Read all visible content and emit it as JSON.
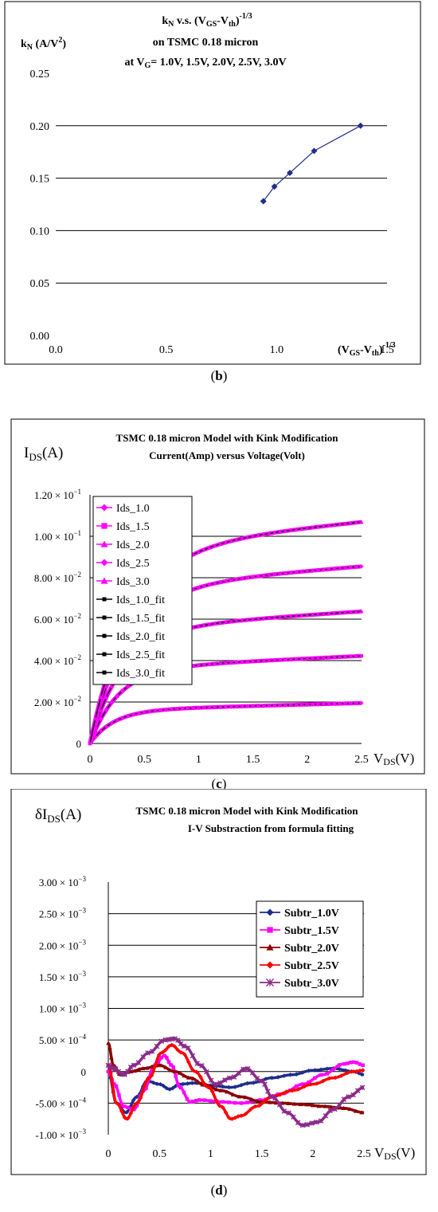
{
  "chart_data": [
    {
      "id": "b",
      "type": "line",
      "title_lines": [
        "k_N v.s. (V_GS-V_th)^-1/3",
        "on TSMC 0.18 micron",
        "at V_G= 1.0V, 1.5V, 2.0V, 2.5V, 3.0V"
      ],
      "title": {
        "l1_k": "k",
        "l1_k_sub": "N",
        "l1_mid": " v.s. (V",
        "l1_gs_sub": "GS",
        "l1_dash": "-V",
        "l1_th_sub": "th",
        "l1_close": ")",
        "l1_sup": "-1/3",
        "l2": "on TSMC 0.18 micron",
        "l3_a": "at V",
        "l3_sub": "G",
        "l3_b": "= 1.0V, 1.5V, 2.0V, 2.5V, 3.0V"
      },
      "ylabel": {
        "k": "k",
        "sub": "N",
        "rest": " (A/V",
        "sup": "2",
        "close": ")"
      },
      "xlabel": {
        "open": "(V",
        "gs_sub": "GS",
        "dash": "-V",
        "th_sub": "th",
        "close": ")",
        "sup": "-1/3"
      },
      "xlim": [
        0,
        1.5
      ],
      "ylim": [
        0,
        0.25
      ],
      "x_ticks": [
        "0.0",
        "0.5",
        "1.0",
        "1.5"
      ],
      "y_ticks": [
        "0.00",
        "0.05",
        "0.10",
        "0.15",
        "0.20",
        "0.25"
      ],
      "grid": true,
      "series": [
        {
          "color": "#1f2d8a",
          "marker": "diamond",
          "x": [
            0.94,
            0.99,
            1.06,
            1.17,
            1.38
          ],
          "y": [
            0.128,
            0.142,
            0.155,
            0.176,
            0.2
          ]
        }
      ]
    },
    {
      "id": "c",
      "type": "line",
      "title_lines": [
        "TSMC 0.18 micron Model with Kink Modification",
        "Current(Amp) versus Voltage(Volt)"
      ],
      "ylabel": {
        "base": "I",
        "sub": "DS",
        "rest": "(A)"
      },
      "xlabel": {
        "base": "V",
        "sub": "DS",
        "rest": "(V)"
      },
      "xlim": [
        0,
        2.5
      ],
      "ylim": [
        0,
        0.12
      ],
      "x_ticks": [
        "0",
        "0.5",
        "1",
        "1.5",
        "2",
        "2.5"
      ],
      "y_ticks": [
        {
          "m": "0",
          "e": ""
        },
        {
          "m": "2.00 × 10",
          "e": "−2"
        },
        {
          "m": "4.00 × 10",
          "e": "−2"
        },
        {
          "m": "6.00 × 10",
          "e": "−2"
        },
        {
          "m": "8.00 × 10",
          "e": "−2"
        },
        {
          "m": "1.00 × 10",
          "e": "−1"
        },
        {
          "m": "1.20 × 10",
          "e": "−1"
        }
      ],
      "grid": true,
      "legend_position": "top-left",
      "series": [
        {
          "name": "Ids_1.0",
          "color": "#ff00ff",
          "marker": "diamond",
          "vsat": 0.016,
          "slope": 0.0014,
          "tau": 0.22
        },
        {
          "name": "Ids_1.5",
          "color": "#ff00ff",
          "marker": "square",
          "vsat": 0.036,
          "slope": 0.0025,
          "tau": 0.26
        },
        {
          "name": "Ids_2.0",
          "color": "#ff00ff",
          "marker": "triangle",
          "vsat": 0.055,
          "slope": 0.0035,
          "tau": 0.3
        },
        {
          "name": "Ids_2.5",
          "color": "#ff00ff",
          "marker": "diamond",
          "vsat": 0.075,
          "slope": 0.0042,
          "tau": 0.34
        },
        {
          "name": "Ids_3.0",
          "color": "#ff00ff",
          "marker": "triangle",
          "vsat": 0.094,
          "slope": 0.0052,
          "tau": 0.38
        },
        {
          "name": "Ids_1.0_fit",
          "color": "#000000",
          "marker": "dash"
        },
        {
          "name": "Ids_1.5_fit",
          "color": "#000000",
          "marker": "dash"
        },
        {
          "name": "Ids_2.0_fit",
          "color": "#000000",
          "marker": "dash"
        },
        {
          "name": "Ids_2.5_fit",
          "color": "#000000",
          "marker": "dash"
        },
        {
          "name": "Ids_3.0_fit",
          "color": "#000000",
          "marker": "dash"
        }
      ]
    },
    {
      "id": "d",
      "type": "line",
      "title_lines": [
        "TSMC 0.18 micron Model with Kink Modification",
        "I-V Substraction from formula fitting"
      ],
      "ylabel": {
        "base": "δI",
        "sub": "DS",
        "rest": "(A)"
      },
      "xlabel": {
        "base": "V",
        "sub": "DS",
        "rest": "(V)"
      },
      "xlim": [
        0,
        2.5
      ],
      "ylim": [
        -0.001,
        0.003
      ],
      "x_ticks": [
        "0",
        "0.5",
        "1",
        "1.5",
        "2",
        "2.5"
      ],
      "y_ticks": [
        {
          "m": "-1.00 × 10",
          "e": "−3"
        },
        {
          "m": "-5.00 × 10",
          "e": "−4"
        },
        {
          "m": "0",
          "e": ""
        },
        {
          "m": "5.00 × 10",
          "e": "−4"
        },
        {
          "m": "1.00 × 10",
          "e": "−3"
        },
        {
          "m": "1.50 × 10",
          "e": "−3"
        },
        {
          "m": "2.00 × 10",
          "e": "−3"
        },
        {
          "m": "2.50 × 10",
          "e": "−3"
        },
        {
          "m": "3.00 × 10",
          "e": "−3"
        }
      ],
      "grid": true,
      "legend_position": "top-right",
      "series": [
        {
          "name": "Subtr_1.0V",
          "color": "#1f2d8a",
          "marker": "diamond",
          "x": [
            0,
            0.08,
            0.17,
            0.28,
            0.38,
            0.5,
            0.6,
            0.7,
            0.85,
            1.0,
            1.2,
            1.4,
            1.6,
            1.8,
            2.0,
            2.2,
            2.4,
            2.5
          ],
          "y": [
            0,
            -0.0005,
            -0.00065,
            -0.0004,
            -0.00015,
            -0.0002,
            -0.00028,
            -0.0002,
            -0.00018,
            -0.00022,
            -0.00025,
            -0.00018,
            -0.0001,
            -5e-05,
            2e-05,
            5e-05,
            0.0,
            -5e-05
          ]
        },
        {
          "name": "Subtr_1.5V",
          "color": "#ff00ff",
          "marker": "square",
          "x": [
            0,
            0.06,
            0.15,
            0.25,
            0.35,
            0.45,
            0.55,
            0.62,
            0.7,
            0.8,
            0.9,
            1.1,
            1.3,
            1.5,
            1.7,
            1.9,
            2.1,
            2.3,
            2.4,
            2.5
          ],
          "y": [
            0,
            -0.0002,
            -0.00055,
            -0.0006,
            -0.0003,
            0.0001,
            0.00025,
            0.0001,
            -0.00025,
            -0.00048,
            -0.00045,
            -0.00048,
            -0.0005,
            -0.00045,
            -0.00035,
            -0.0002,
            -5e-05,
            0.00012,
            0.00015,
            0.0001
          ]
        },
        {
          "name": "Subtr_2.0V",
          "color": "#8b0000",
          "marker": "triangle",
          "x": [
            0,
            0.05,
            0.12,
            0.22,
            0.35,
            0.5,
            0.65,
            0.8,
            0.95,
            1.1,
            1.3,
            1.5,
            1.7,
            1.9,
            2.1,
            2.3,
            2.5
          ],
          "y": [
            0.00045,
            0.0001,
            -5e-05,
            0.0,
            5e-05,
            0.0001,
            0.0,
            -0.0001,
            -0.00022,
            -0.0003,
            -0.0004,
            -0.00048,
            -0.0005,
            -0.00052,
            -0.00055,
            -0.00058,
            -0.00065
          ]
        },
        {
          "name": "Subtr_2.5V",
          "color": "#ff0000",
          "marker": "diamond",
          "x": [
            0,
            0.08,
            0.18,
            0.28,
            0.4,
            0.52,
            0.62,
            0.72,
            0.85,
            0.98,
            1.1,
            1.2,
            1.3,
            1.45,
            1.6,
            1.8,
            2.0,
            2.2,
            2.4,
            2.5
          ],
          "y": [
            0.0001,
            -0.0005,
            -0.00075,
            -0.0005,
            -0.0001,
            0.0003,
            0.00042,
            0.0003,
            0.0,
            -0.00025,
            -0.00055,
            -0.00075,
            -0.0007,
            -0.00055,
            -0.0004,
            -0.0003,
            -0.0002,
            -0.0001,
            0.0,
            2e-05
          ]
        },
        {
          "name": "Subtr_3.0V",
          "color": "#8a2b8a",
          "marker": "star",
          "x": [
            0,
            0.05,
            0.15,
            0.25,
            0.4,
            0.55,
            0.65,
            0.75,
            0.9,
            1.05,
            1.2,
            1.35,
            1.5,
            1.6,
            1.75,
            1.9,
            2.05,
            2.2,
            2.35,
            2.5
          ],
          "y": [
            0.0001,
            5e-05,
            -5e-05,
            0.0001,
            0.0003,
            0.0005,
            0.00052,
            0.0004,
            0.0001,
            -0.0002,
            -0.0001,
            5e-05,
            -0.00015,
            -0.0004,
            -0.00065,
            -0.00085,
            -0.0008,
            -0.0006,
            -0.0004,
            -0.00025
          ]
        }
      ]
    }
  ],
  "captions": [
    "b",
    "c",
    "d"
  ]
}
